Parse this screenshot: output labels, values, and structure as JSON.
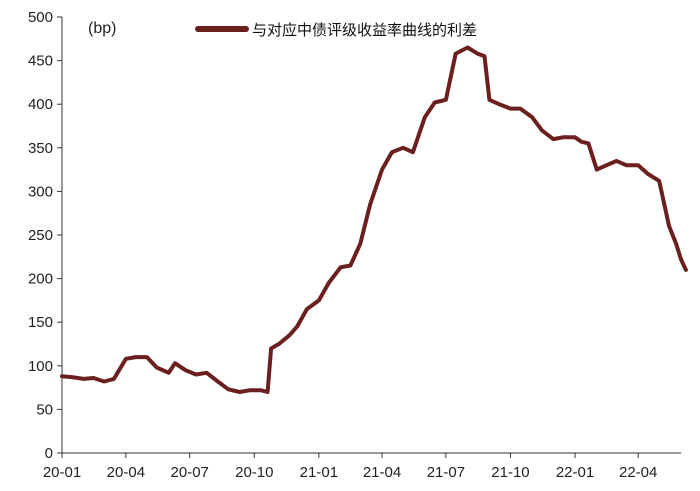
{
  "chart_data": {
    "type": "line",
    "title": "",
    "xlabel": "",
    "ylabel": "",
    "unit": "(bp)",
    "ylim": [
      0,
      500
    ],
    "yticks": [
      0,
      50,
      100,
      150,
      200,
      250,
      300,
      350,
      400,
      450,
      500
    ],
    "xlim": [
      "2020-01",
      "2022-06"
    ],
    "xticks": [
      "20-01",
      "20-04",
      "20-07",
      "20-10",
      "21-01",
      "21-04",
      "21-07",
      "21-10",
      "22-01",
      "22-04"
    ],
    "grid": false,
    "legend": "top-center",
    "color": "#6B1F1F",
    "series": [
      {
        "name": "与对应中债评级收益率曲线的利差",
        "x": [
          "2020-01-01",
          "2020-01-15",
          "2020-02-01",
          "2020-02-15",
          "2020-03-01",
          "2020-03-15",
          "2020-04-01",
          "2020-04-15",
          "2020-05-01",
          "2020-05-15",
          "2020-06-01",
          "2020-06-10",
          "2020-06-25",
          "2020-07-10",
          "2020-07-25",
          "2020-08-10",
          "2020-08-25",
          "2020-09-10",
          "2020-09-25",
          "2020-10-10",
          "2020-10-20",
          "2020-10-25",
          "2020-11-05",
          "2020-11-20",
          "2020-12-01",
          "2020-12-15",
          "2021-01-01",
          "2021-01-15",
          "2021-02-01",
          "2021-02-15",
          "2021-03-01",
          "2021-03-15",
          "2021-04-01",
          "2021-04-15",
          "2021-05-01",
          "2021-05-15",
          "2021-06-01",
          "2021-06-15",
          "2021-07-01",
          "2021-07-15",
          "2021-08-01",
          "2021-08-15",
          "2021-08-25",
          "2021-09-01",
          "2021-09-15",
          "2021-10-01",
          "2021-10-15",
          "2021-11-01",
          "2021-11-15",
          "2021-12-01",
          "2021-12-15",
          "2022-01-01",
          "2022-01-10",
          "2022-01-20",
          "2022-02-01",
          "2022-02-15",
          "2022-03-01",
          "2022-03-15",
          "2022-04-01",
          "2022-04-15",
          "2022-05-01",
          "2022-05-15",
          "2022-05-25",
          "2022-06-01",
          "2022-06-08"
        ],
        "values": [
          88,
          87,
          85,
          86,
          82,
          85,
          108,
          110,
          110,
          98,
          92,
          103,
          95,
          90,
          92,
          82,
          73,
          70,
          72,
          72,
          70,
          120,
          125,
          135,
          145,
          165,
          175,
          195,
          213,
          215,
          240,
          285,
          325,
          345,
          350,
          345,
          385,
          402,
          405,
          458,
          465,
          458,
          455,
          405,
          400,
          395,
          395,
          385,
          370,
          360,
          362,
          362,
          357,
          355,
          325,
          330,
          335,
          330,
          330,
          320,
          312,
          260,
          240,
          222,
          210
        ]
      }
    ]
  }
}
